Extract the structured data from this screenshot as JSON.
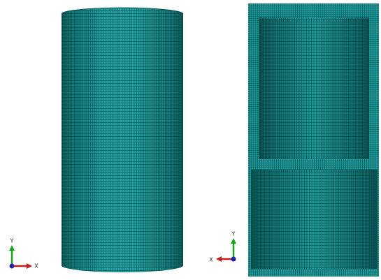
{
  "triads": [
    {
      "y_label": "Y",
      "x_label": "X"
    },
    {
      "y_label": "Y",
      "x_label": "X"
    }
  ]
}
